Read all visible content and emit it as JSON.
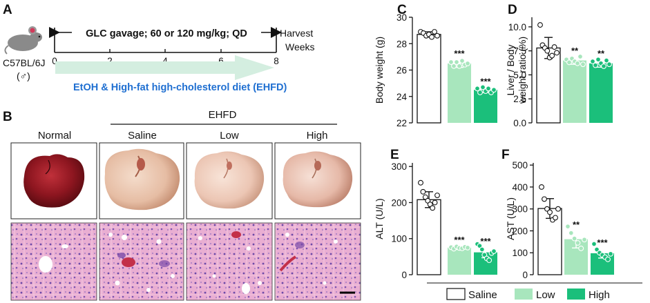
{
  "panel_letters": {
    "a": "A",
    "b": "B",
    "c": "C",
    "d": "D",
    "e": "E",
    "f": "F"
  },
  "panel_a": {
    "mouse_strain": "C57BL/6J",
    "mouse_sex": "(♂)",
    "protocol": "GLC gavage; 60 or 120 mg/kg; QD",
    "harvest": "Harvest",
    "weeks_label": "Weeks",
    "week_ticks": [
      "0",
      "2",
      "4",
      "6",
      "8"
    ],
    "diet": "EtOH & High-fat high-cholesterol diet (EHFD)"
  },
  "panel_b": {
    "group_header": "EHFD",
    "columns": [
      "Normal",
      "Saline",
      "Low",
      "High"
    ]
  },
  "colors": {
    "saline": "#ffffff",
    "low": "#a8e6bd",
    "high": "#1bbf7b",
    "arrow": "#d4eee0",
    "diet_text": "#1f6fd1",
    "he_pink": "#e7a9cd"
  },
  "legend": {
    "saline": "Saline",
    "low": "Low",
    "high": "High"
  },
  "chart_data": [
    {
      "panel": "C",
      "type": "bar",
      "categories": [
        "Saline",
        "Low",
        "High"
      ],
      "values": [
        28.7,
        26.5,
        24.5
      ],
      "errors": [
        0.2,
        0.3,
        0.2
      ],
      "points": [
        [
          28.9,
          28.8,
          28.6,
          28.7,
          28.5,
          28.9,
          28.6
        ],
        [
          26.6,
          26.3,
          26.6,
          26.3,
          26.7,
          26.4,
          26.5
        ],
        [
          24.6,
          24.3,
          24.7,
          24.4,
          24.6,
          24.3,
          24.5
        ]
      ],
      "significance": [
        "",
        "***",
        "***"
      ],
      "ylabel": "Body  weight (g)",
      "ylim": [
        22,
        30
      ],
      "yticks": [
        22,
        24,
        26,
        28,
        30
      ]
    },
    {
      "panel": "D",
      "type": "bar",
      "categories": [
        "Saline",
        "Low",
        "High"
      ],
      "values": [
        7.8,
        6.5,
        6.2
      ],
      "errors": [
        1.1,
        0.4,
        0.4
      ],
      "points": [
        [
          10.2,
          8.1,
          7.8,
          7.5,
          6.8,
          7.0,
          7.9,
          7.3
        ],
        [
          6.6,
          6.3,
          6.7,
          6.4,
          6.2,
          6.9,
          6.1
        ],
        [
          6.4,
          6.0,
          6.6,
          6.2,
          5.9,
          6.5,
          6.1
        ]
      ],
      "significance": [
        "",
        "**",
        "**"
      ],
      "ylabel": [
        "Liver / Body",
        "weight ratio (%)"
      ],
      "ylim": [
        0,
        11
      ],
      "yticks": [
        0.0,
        2.5,
        5.0,
        7.5,
        10.0
      ]
    },
    {
      "panel": "E",
      "type": "bar",
      "categories": [
        "Saline",
        "Low",
        "High"
      ],
      "values": [
        208,
        75,
        62
      ],
      "errors": [
        22,
        5,
        15
      ],
      "points": [
        [
          255,
          230,
          215,
          205,
          195,
          185,
          200,
          220
        ],
        [
          76,
          72,
          78,
          74,
          73,
          77,
          75
        ],
        [
          85,
          80,
          70,
          55,
          45,
          40,
          60,
          65
        ]
      ],
      "significance": [
        "",
        "***",
        "***"
      ],
      "ylabel": "ALT (U/L)",
      "ylim": [
        0,
        310
      ],
      "yticks": [
        0,
        100,
        200,
        300
      ]
    },
    {
      "panel": "F",
      "type": "bar",
      "categories": [
        "Saline",
        "Low",
        "High"
      ],
      "values": [
        302,
        162,
        98
      ],
      "errors": [
        45,
        40,
        22
      ],
      "points": [
        [
          400,
          345,
          300,
          285,
          250,
          260,
          300
        ],
        [
          220,
          190,
          165,
          145,
          120,
          160
        ],
        [
          140,
          115,
          100,
          90,
          80,
          70,
          95
        ]
      ],
      "significance": [
        "",
        "**",
        "***"
      ],
      "ylabel": "AST (U/L)",
      "ylim": [
        0,
        510
      ],
      "yticks": [
        0,
        100,
        200,
        300,
        400,
        500
      ]
    }
  ]
}
